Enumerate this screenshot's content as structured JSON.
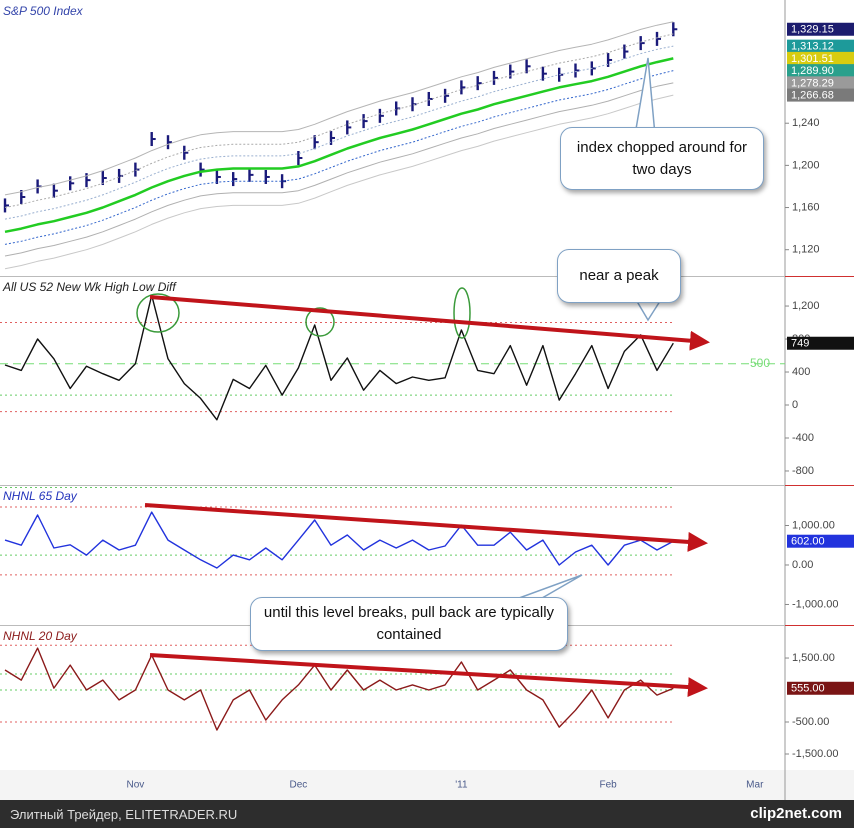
{
  "chart_data": [
    {
      "type": "line",
      "title": "S&P 500 Index",
      "title_color": "#3344aa",
      "ylim": [
        1096,
        1355
      ],
      "yticks": [
        {
          "value": 1120,
          "label": "1,120"
        },
        {
          "value": 1160,
          "label": "1,160"
        },
        {
          "value": 1200,
          "label": "1,200"
        },
        {
          "value": 1240,
          "label": "1,240"
        }
      ],
      "series": [
        {
          "style": "bars",
          "color": "#1a1a7a",
          "values": [
            1162,
            1170,
            1180,
            1176,
            1183,
            1186,
            1188,
            1190,
            1196,
            1225,
            1222,
            1212,
            1196,
            1189,
            1187,
            1191,
            1189,
            1185,
            1207,
            1222,
            1226,
            1236,
            1242,
            1247,
            1254,
            1258,
            1263,
            1266,
            1274,
            1278,
            1283,
            1289,
            1294,
            1287,
            1286,
            1290,
            1292,
            1300,
            1308,
            1316,
            1320,
            1329.15,
            null,
            null,
            null,
            null,
            null
          ]
        },
        {
          "style": "solid",
          "color": "#b5b5b5",
          "values": [
            1172,
            1175,
            1179,
            1182,
            1186,
            1190,
            1195,
            1201,
            1207,
            1214,
            1220,
            1225,
            1229,
            1231,
            1232,
            1232,
            1232,
            1232,
            1234,
            1239,
            1245,
            1251,
            1256,
            1261,
            1265,
            1269,
            1274,
            1279,
            1284,
            1288,
            1293,
            1297,
            1301,
            1305,
            1309,
            1312,
            1315,
            1319,
            1324,
            1329,
            1333,
            1336.34,
            null,
            null,
            null,
            null,
            null
          ]
        },
        {
          "style": "dotted",
          "color": "#aaaaaa",
          "values": [
            1160,
            1163,
            1167,
            1170,
            1174,
            1178,
            1183,
            1189,
            1195,
            1202,
            1208,
            1213,
            1217,
            1219,
            1220,
            1220,
            1220,
            1220,
            1222,
            1227,
            1233,
            1239,
            1244,
            1249,
            1253,
            1257,
            1262,
            1267,
            1272,
            1276,
            1281,
            1285,
            1289,
            1293,
            1297,
            1300,
            1303,
            1307,
            1312,
            1317,
            1321,
            1324.73,
            null,
            null,
            null,
            null,
            null
          ]
        },
        {
          "style": "dotted",
          "color": "#9ab0d0",
          "values": [
            1149,
            1152,
            1156,
            1159,
            1163,
            1167,
            1172,
            1178,
            1184,
            1191,
            1197,
            1202,
            1206,
            1208,
            1209,
            1209,
            1209,
            1209,
            1211,
            1216,
            1222,
            1228,
            1233,
            1238,
            1242,
            1246,
            1251,
            1256,
            1261,
            1265,
            1270,
            1274,
            1278,
            1282,
            1286,
            1289,
            1292,
            1296,
            1301,
            1306,
            1310,
            1313.12,
            null,
            null,
            null,
            null,
            null
          ]
        },
        {
          "style": "thick",
          "color": "#22cc22",
          "values": [
            1137,
            1140,
            1144,
            1147,
            1151,
            1155,
            1160,
            1166,
            1172,
            1179,
            1185,
            1190,
            1194,
            1196,
            1197,
            1197,
            1197,
            1197,
            1199,
            1204,
            1210,
            1216,
            1221,
            1226,
            1230,
            1234,
            1239,
            1244,
            1249,
            1253,
            1258,
            1262,
            1266,
            1270,
            1274,
            1277,
            1280,
            1284,
            1289,
            1294,
            1298,
            1301.51,
            null,
            null,
            null,
            null,
            null
          ]
        },
        {
          "style": "dotted",
          "color": "#3366cc",
          "values": [
            1125,
            1128,
            1132,
            1135,
            1139,
            1143,
            1148,
            1154,
            1160,
            1167,
            1173,
            1178,
            1182,
            1184,
            1185,
            1185,
            1185,
            1185,
            1187,
            1192,
            1198,
            1204,
            1209,
            1214,
            1218,
            1222,
            1227,
            1232,
            1237,
            1241,
            1246,
            1250,
            1254,
            1258,
            1262,
            1265,
            1268,
            1272,
            1277,
            1282,
            1286,
            1289.9,
            null,
            null,
            null,
            null,
            null
          ]
        },
        {
          "style": "solid",
          "color": "#b0b0b0",
          "values": [
            1114,
            1117,
            1121,
            1124,
            1128,
            1132,
            1137,
            1143,
            1149,
            1156,
            1162,
            1167,
            1171,
            1173,
            1174,
            1174,
            1174,
            1174,
            1176,
            1181,
            1187,
            1193,
            1198,
            1203,
            1207,
            1211,
            1216,
            1221,
            1226,
            1230,
            1235,
            1239,
            1243,
            1247,
            1251,
            1254,
            1257,
            1261,
            1266,
            1271,
            1275,
            1278.29,
            null,
            null,
            null,
            null,
            null
          ]
        },
        {
          "style": "solid",
          "color": "#c8c8c8",
          "values": [
            1102,
            1105,
            1109,
            1112,
            1116,
            1120,
            1125,
            1131,
            1137,
            1144,
            1150,
            1155,
            1159,
            1161,
            1162,
            1162,
            1162,
            1162,
            1164,
            1169,
            1175,
            1181,
            1186,
            1191,
            1195,
            1199,
            1204,
            1209,
            1214,
            1218,
            1223,
            1227,
            1231,
            1235,
            1239,
            1242,
            1245,
            1249,
            1254,
            1259,
            1263,
            1266.68,
            null,
            null,
            null,
            null,
            null
          ]
        }
      ],
      "tags": [
        {
          "value": 1329.15,
          "label": "1,329.15",
          "color": "#1c1c6e",
          "text_color": "#fff"
        },
        {
          "value": 1313.12,
          "label": "1,313.12",
          "color": "#1d9a9a",
          "text_color": "#fff"
        },
        {
          "value": 1301.51,
          "label": "1,301.51",
          "color": "#d8cc10",
          "text_color": "#fff"
        },
        {
          "value": 1289.9,
          "label": "1,289.90",
          "color": "#2aa08c",
          "text_color": "#fff"
        },
        {
          "value": 1278.29,
          "label": "1,278.29",
          "color": "#9a9a9a",
          "text_color": "#fff"
        },
        {
          "value": 1266.68,
          "label": "1,266.68",
          "color": "#7a7a7a",
          "text_color": "#fff"
        }
      ]
    },
    {
      "type": "line",
      "title": "All US 52 New Wk High Low Diff",
      "title_color": "#222",
      "ylim": [
        -970,
        1540
      ],
      "yticks": [
        {
          "value": 1200,
          "label": "1,200"
        },
        800,
        400,
        0,
        -400,
        -800
      ],
      "hlines": [
        {
          "value": 1000,
          "color": "#e06060"
        },
        {
          "value": -80,
          "color": "#e06060"
        },
        {
          "value": 120,
          "color": "#66cc66"
        },
        {
          "value": -1000,
          "color": "#66cc66"
        }
      ],
      "ref_line": {
        "value": 500,
        "color": "#77dd77"
      },
      "series": [
        {
          "color": "#111",
          "values": [
            485,
            420,
            800,
            560,
            200,
            470,
            380,
            300,
            500,
            1330,
            560,
            260,
            80,
            -180,
            310,
            200,
            480,
            120,
            450,
            970,
            300,
            570,
            180,
            420,
            260,
            340,
            300,
            330,
            910,
            420,
            380,
            720,
            240,
            720,
            60,
            380,
            720,
            200,
            650,
            850,
            420,
            749,
            null,
            null,
            null,
            null,
            null
          ]
        }
      ],
      "tags": [
        {
          "value": 749,
          "label": "749",
          "color": "#111",
          "text_color": "#fff"
        }
      ]
    },
    {
      "type": "line",
      "title": "NHNL 65 Day",
      "title_color": "#2233bb",
      "ylim": [
        -1520,
        1975
      ],
      "yticks": [
        {
          "value": 1000,
          "label": "1,000.00"
        },
        {
          "value": 0,
          "label": "0.00"
        },
        {
          "value": -1000,
          "label": "-1,000.00"
        }
      ],
      "hlines": [
        {
          "value": 1470,
          "color": "#e06060"
        },
        {
          "value": -250,
          "color": "#e06060"
        },
        {
          "value": 250,
          "color": "#66cc66"
        }
      ],
      "series": [
        {
          "color": "#2233dd",
          "values": [
            630,
            500,
            1265,
            430,
            510,
            250,
            630,
            380,
            500,
            1340,
            630,
            380,
            130,
            -76,
            250,
            130,
            430,
            130,
            630,
            1140,
            500,
            760,
            380,
            630,
            430,
            630,
            380,
            480,
            1010,
            500,
            500,
            830,
            380,
            630,
            0,
            330,
            500,
            0,
            500,
            630,
            380,
            602,
            null,
            null,
            null,
            null,
            null
          ]
        }
      ],
      "tags": [
        {
          "value": 602,
          "label": "602.00",
          "color": "#2233dd",
          "text_color": "#fff"
        }
      ]
    },
    {
      "type": "line",
      "title": "NHNL 20 Day",
      "title_color": "#8b1a1a",
      "ylim": [
        -2000,
        2470
      ],
      "yticks": [
        {
          "value": 1500,
          "label": "1,500.00"
        },
        {
          "value": -500,
          "label": "-500.00"
        },
        {
          "value": -1500,
          "label": "-1,500.00"
        }
      ],
      "hlines": [
        {
          "value": 1900,
          "color": "#e06060"
        },
        {
          "value": -500,
          "color": "#e06060"
        },
        {
          "value": 500,
          "color": "#66cc66"
        },
        {
          "value": 1000,
          "color": "#66cc66"
        }
      ],
      "categories": [
        null,
        null,
        null,
        null,
        null,
        null,
        null,
        null,
        "Nov",
        null,
        null,
        null,
        null,
        null,
        null,
        null,
        null,
        null,
        "Dec",
        null,
        null,
        null,
        null,
        null,
        null,
        null,
        null,
        null,
        "'11",
        null,
        null,
        null,
        null,
        null,
        null,
        null,
        null,
        "Feb",
        null,
        null,
        null,
        null,
        null,
        null,
        null,
        null,
        "Mar"
      ],
      "series": [
        {
          "color": "#8b1a1a",
          "values": [
            1125,
            810,
            1810,
            560,
            1280,
            500,
            810,
            190,
            500,
            1590,
            500,
            190,
            500,
            -750,
            190,
            500,
            -440,
            190,
            660,
            1280,
            500,
            1125,
            500,
            810,
            500,
            660,
            500,
            660,
            1375,
            500,
            810,
            1125,
            500,
            190,
            -660,
            -130,
            500,
            -370,
            500,
            810,
            340,
            555,
            null,
            null,
            null,
            null,
            null
          ]
        }
      ],
      "tags": [
        {
          "value": 555,
          "label": "555.00",
          "color": "#7a1515",
          "text_color": "#fff"
        }
      ]
    }
  ],
  "annotations": [
    "index chopped around for two days",
    "near a peak",
    "until this level breaks, pull back are typically contained"
  ],
  "footer": {
    "source": "Элитный Трейдер, ELITETRADER.RU",
    "logo": "clip2net.com"
  }
}
